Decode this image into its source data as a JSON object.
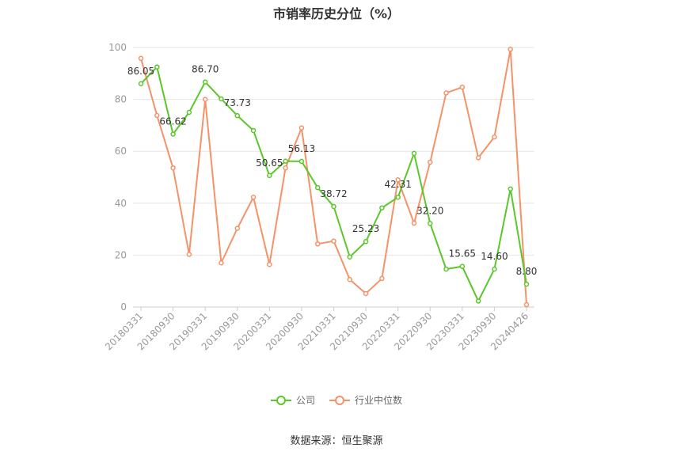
{
  "chart_data": {
    "type": "line",
    "title": "市销率历史分位（%）",
    "x": [
      "20180331",
      "20180630",
      "20180930",
      "20181231",
      "20190331",
      "20190630",
      "20190930",
      "20191231",
      "20200331",
      "20200630",
      "20200930",
      "20201231",
      "20210331",
      "20210630",
      "20210930",
      "20211231",
      "20220331",
      "20220630",
      "20220930",
      "20221231",
      "20230331",
      "20230630",
      "20230930",
      "20231231",
      "20240426"
    ],
    "ylim": [
      0,
      100
    ],
    "yticks": [
      0,
      20,
      40,
      60,
      80,
      100
    ],
    "xticks_shown": [
      "20180331",
      "20180930",
      "20190331",
      "20190930",
      "20200331",
      "20200930",
      "20210331",
      "20210930",
      "20220331",
      "20220930",
      "20230331",
      "20230930",
      "20240426"
    ],
    "series": [
      {
        "name": "公司",
        "color": "#5bc72b",
        "values": [
          86.05,
          92.5,
          66.62,
          75.0,
          86.7,
          80.2,
          73.73,
          68.0,
          50.65,
          56.2,
          56.13,
          46.0,
          38.72,
          19.3,
          25.23,
          38.2,
          42.31,
          59.2,
          32.2,
          14.6,
          15.65,
          2.3,
          14.6,
          45.5,
          8.8
        ],
        "labels": {
          "0": "86.05",
          "2": "66.62",
          "4": "86.70",
          "6": "73.73",
          "8": "50.65",
          "10": "56.13",
          "12": "38.72",
          "14": "25.23",
          "16": "42.31",
          "18": "32.20",
          "20": "15.65",
          "22": "14.60",
          "24": "8.80"
        }
      },
      {
        "name": "行业中位数",
        "color": "#f4936a",
        "values": [
          95.8,
          73.8,
          53.6,
          20.3,
          80.0,
          17.0,
          30.3,
          42.3,
          16.4,
          53.6,
          69.0,
          24.3,
          25.4,
          10.6,
          5.2,
          11.0,
          49.0,
          32.3,
          55.8,
          82.5,
          84.7,
          57.5,
          65.5,
          99.3,
          0.9
        ]
      }
    ],
    "legend_position": "bottom",
    "grid": true
  },
  "footer": {
    "source": "数据来源：恒生聚源"
  }
}
